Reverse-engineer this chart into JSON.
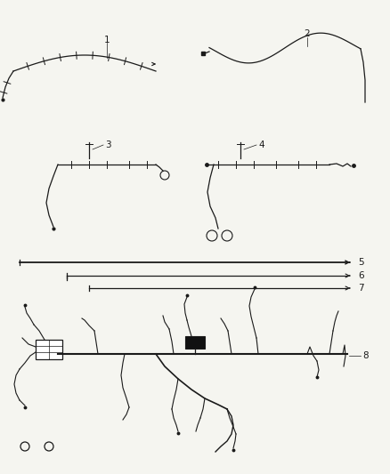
{
  "background_color": "#f5f5f0",
  "line_color": "#1a1a1a",
  "label_color": "#1a1a1a",
  "fig_width": 4.38,
  "fig_height": 5.33,
  "dpi": 100,
  "label_fontsize": 7.5
}
